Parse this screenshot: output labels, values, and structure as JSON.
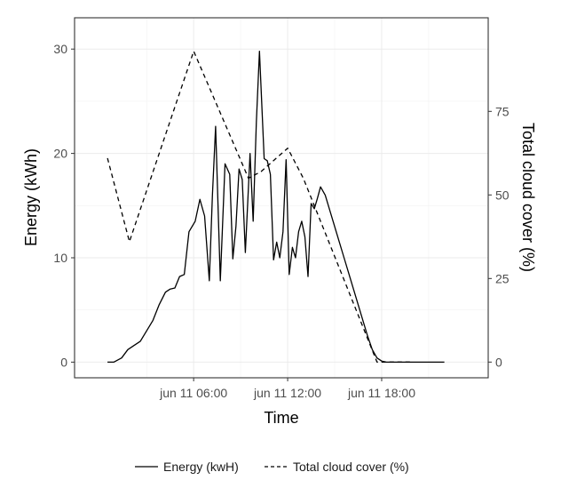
{
  "chart_data": {
    "type": "line",
    "title": "",
    "xlabel": "Time",
    "ylabel": "Energy (kWh)",
    "y2label": "Total cloud cover (%)",
    "x_unit": "hours since 00:00, 2020-06-11",
    "xlim": [
      -1.6,
      24.8
    ],
    "ylim": [
      -1.5,
      33
    ],
    "y2lim": [
      -4.7,
      103
    ],
    "grid": true,
    "legend_position": "bottom",
    "x_ticks": [
      {
        "value": 6,
        "label": "jun 11 06:00"
      },
      {
        "value": 12,
        "label": "jun 11 12:00"
      },
      {
        "value": 18,
        "label": "jun 11 18:00"
      }
    ],
    "y_ticks": [
      {
        "value": 0,
        "label": "0"
      },
      {
        "value": 10,
        "label": "10"
      },
      {
        "value": 20,
        "label": "20"
      },
      {
        "value": 30,
        "label": "30"
      }
    ],
    "y2_ticks": [
      {
        "value": 0,
        "label": "0"
      },
      {
        "value": 25,
        "label": "25"
      },
      {
        "value": 50,
        "label": "50"
      },
      {
        "value": 75,
        "label": "75"
      }
    ],
    "series": [
      {
        "name": "Energy (kwH)",
        "axis": "left",
        "color": "#000000",
        "dash": "solid",
        "x": [
          0.5,
          0.9,
          1.4,
          1.8,
          2.2,
          2.6,
          3.0,
          3.4,
          3.8,
          4.2,
          4.5,
          4.8,
          5.1,
          5.4,
          5.7,
          6.1,
          6.4,
          6.7,
          7.0,
          7.2,
          7.4,
          7.7,
          8.0,
          8.3,
          8.5,
          8.7,
          8.9,
          9.1,
          9.3,
          9.6,
          9.8,
          10.0,
          10.2,
          10.5,
          10.7,
          10.9,
          11.1,
          11.3,
          11.5,
          11.7,
          11.9,
          12.1,
          12.3,
          12.5,
          12.7,
          12.9,
          13.1,
          13.3,
          13.5,
          13.7,
          13.9,
          14.1,
          14.4,
          14.7,
          15.0,
          15.3,
          15.6,
          15.9,
          16.2,
          16.5,
          16.8,
          17.1,
          17.4,
          17.7,
          18.0,
          18.3,
          18.6,
          18.9,
          19.2,
          19.5,
          19.8,
          20.5,
          21.3,
          22.0
        ],
        "y": [
          0,
          0,
          0.4,
          1.2,
          1.6,
          2.0,
          3.0,
          4.0,
          5.5,
          6.7,
          7.0,
          7.1,
          8.2,
          8.4,
          12.5,
          13.5,
          15.6,
          14.0,
          7.8,
          16.0,
          22.6,
          7.8,
          19.0,
          18.0,
          9.9,
          13.0,
          18.5,
          17.5,
          10.5,
          20.0,
          13.5,
          23.0,
          29.8,
          19.5,
          19.3,
          18.0,
          9.8,
          11.5,
          10.0,
          12.5,
          19.4,
          8.4,
          11.0,
          10.0,
          12.5,
          13.5,
          12.0,
          8.2,
          15.2,
          14.7,
          15.7,
          16.8,
          16.0,
          14.5,
          13.0,
          11.5,
          10.0,
          8.5,
          7.0,
          5.5,
          4.0,
          2.5,
          1.2,
          0.4,
          0.1,
          0,
          0,
          0,
          0,
          0,
          0,
          0,
          0,
          0
        ]
      },
      {
        "name": "Total cloud cover (%)",
        "axis": "right",
        "color": "#000000",
        "dash": "dashed",
        "x": [
          0.5,
          1.9,
          6.0,
          9.5,
          10.3,
          12.0,
          13.0,
          17.7,
          20.0
        ],
        "y": [
          61,
          36,
          93,
          55,
          57,
          64,
          55,
          0,
          0
        ]
      }
    ]
  }
}
